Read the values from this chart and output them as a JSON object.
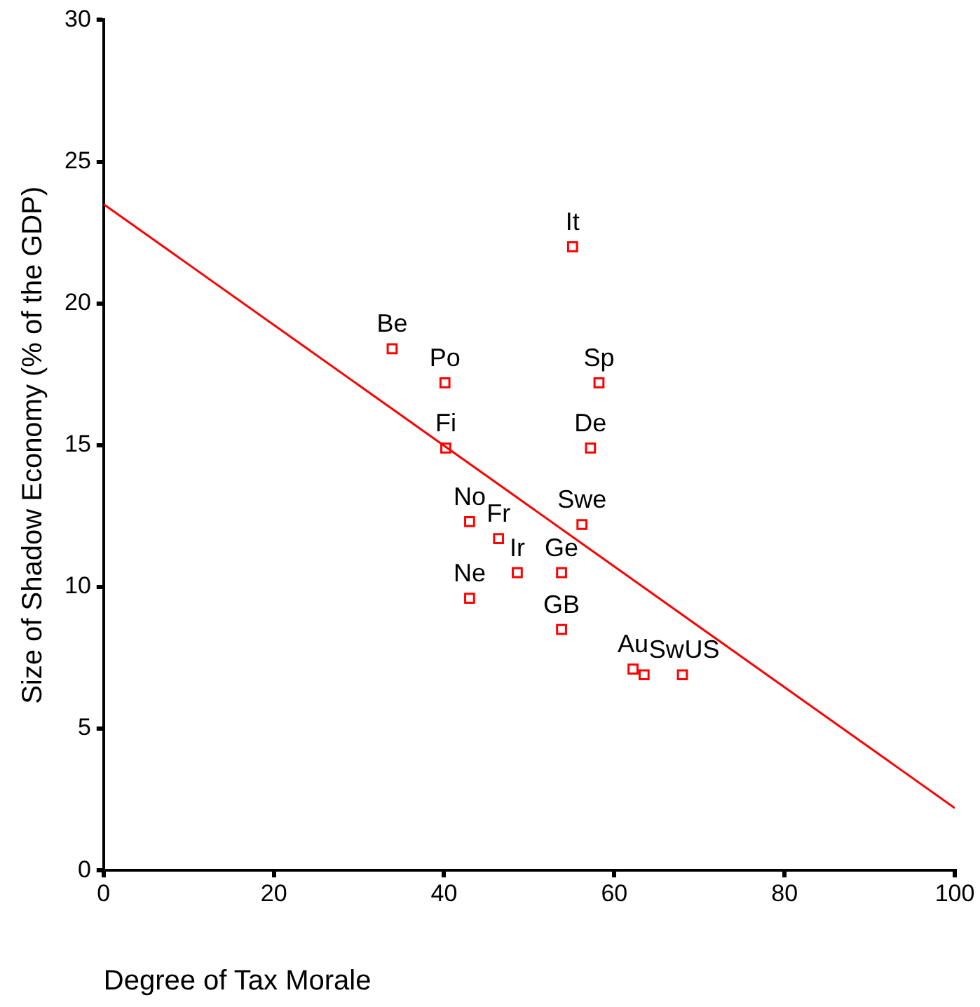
{
  "chart_data": {
    "type": "scatter",
    "xlabel": "Degree of Tax Morale",
    "ylabel": "Size of Shadow Economy (% of the GDP)",
    "xlim": [
      0,
      100
    ],
    "xticks": [
      0,
      20,
      40,
      60,
      80,
      100
    ],
    "ylim": [
      0,
      30
    ],
    "yticks": [
      0,
      5,
      10,
      15,
      20,
      25,
      30
    ],
    "grid": false,
    "legend": false,
    "series": [
      {
        "marker": "square",
        "color": "#ff0000",
        "x": [
          33.9,
          40.1,
          40.2,
          55.1,
          58.2,
          57.2,
          56.2,
          43.0,
          46.4,
          53.8,
          48.6,
          43.0,
          53.8,
          62.2,
          63.5,
          68.0
        ],
        "values": [
          18.4,
          17.2,
          14.9,
          22.0,
          17.2,
          14.9,
          12.2,
          12.3,
          11.7,
          10.5,
          10.5,
          9.6,
          8.5,
          7.1,
          6.9,
          6.9
        ]
      },
      {
        "type": "line",
        "marker": "none",
        "color": "#ff0000",
        "x": [
          0,
          100
        ],
        "values": [
          23.5,
          2.2
        ]
      }
    ],
    "annotations": [
      {
        "text": "Be",
        "x": 33.9,
        "y": 18.4
      },
      {
        "text": "Po",
        "x": 40.1,
        "y": 17.2
      },
      {
        "text": "Fi",
        "x": 40.2,
        "y": 14.9
      },
      {
        "text": "It",
        "x": 55.1,
        "y": 22.0
      },
      {
        "text": "Sp",
        "x": 58.2,
        "y": 17.2
      },
      {
        "text": "De",
        "x": 57.2,
        "y": 14.9
      },
      {
        "text": "Swe",
        "x": 56.2,
        "y": 12.2
      },
      {
        "text": "No",
        "x": 43.0,
        "y": 12.3
      },
      {
        "text": "Fr",
        "x": 46.4,
        "y": 11.7
      },
      {
        "text": "Ge",
        "x": 53.8,
        "y": 10.5
      },
      {
        "text": "Ir",
        "x": 48.6,
        "y": 10.5
      },
      {
        "text": "Ne",
        "x": 43.0,
        "y": 9.6
      },
      {
        "text": "GB",
        "x": 53.8,
        "y": 8.5
      },
      {
        "text": "Au",
        "x": 62.2,
        "y": 7.1
      },
      {
        "text": "Sw",
        "x": 63.5,
        "y": 6.9
      },
      {
        "text": "US",
        "x": 68.0,
        "y": 6.9
      }
    ]
  }
}
